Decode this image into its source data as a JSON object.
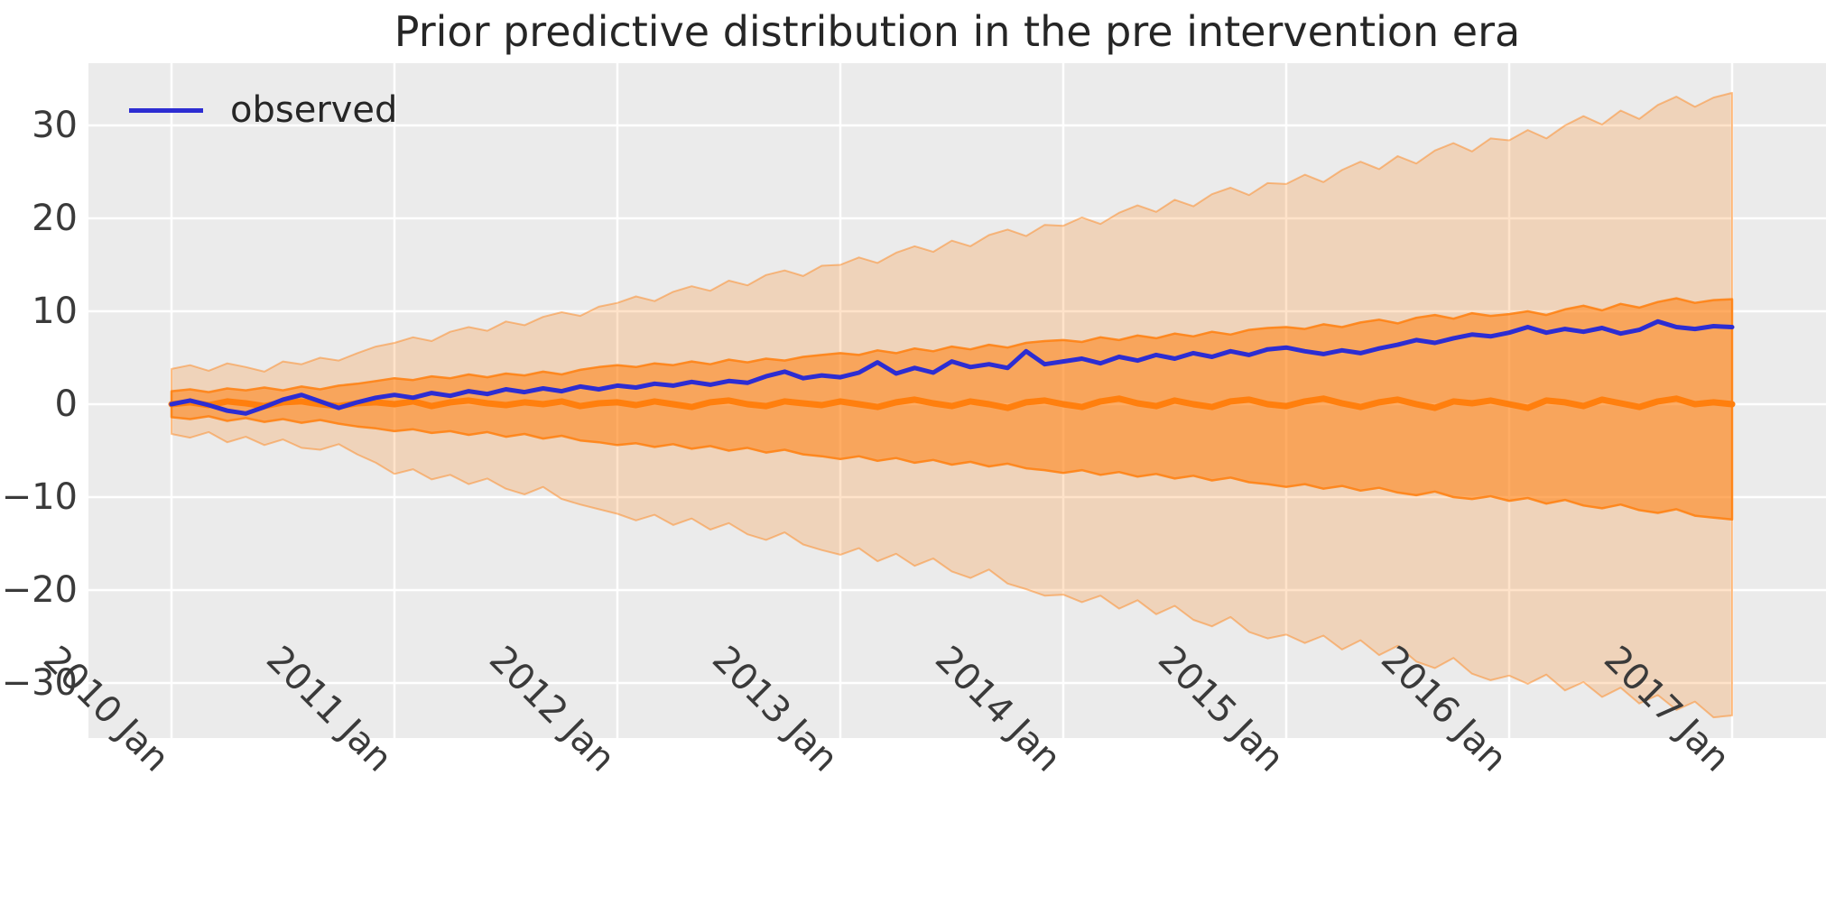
{
  "figure": {
    "title": "Prior predictive distribution in the pre intervention era",
    "background_color": "#ffffff",
    "plot_background_color": "#ebebeb",
    "gridline_color": "#ffffff",
    "text_color": "#262626"
  },
  "legend": {
    "position": "upper-left",
    "entries": [
      {
        "label": "observed",
        "color": "#2d2dd2"
      }
    ]
  },
  "chart_data": {
    "type": "line",
    "title": "Prior predictive distribution in the pre intervention era",
    "xlabel": "",
    "ylabel": "",
    "x_axis": {
      "kind": "monthly-dates",
      "start": "2010 Jan",
      "end": "2017 Jan",
      "n_points": 85,
      "tick_labels": [
        "2010 Jan",
        "2011 Jan",
        "2012 Jan",
        "2013 Jan",
        "2014 Jan",
        "2015 Jan",
        "2016 Jan",
        "2017 Jan"
      ]
    },
    "y_axis": {
      "ticks": [
        30,
        20,
        10,
        0,
        -10,
        -20,
        -30
      ],
      "ylim": [
        -36.3,
        36.7
      ],
      "grid": true
    },
    "series": [
      {
        "name": "observed",
        "color": "#2d2dd2",
        "line_width": 5,
        "values": [
          0.0,
          0.4,
          -0.1,
          -0.7,
          -1.0,
          -0.3,
          0.5,
          1.0,
          0.3,
          -0.4,
          0.2,
          0.7,
          1.0,
          0.7,
          1.2,
          0.9,
          1.4,
          1.1,
          1.6,
          1.3,
          1.7,
          1.4,
          1.9,
          1.6,
          2.0,
          1.8,
          2.2,
          2.0,
          2.4,
          2.1,
          2.5,
          2.3,
          3.0,
          3.5,
          2.8,
          3.1,
          2.9,
          3.4,
          4.5,
          3.3,
          3.9,
          3.4,
          4.6,
          4.0,
          4.3,
          3.9,
          5.7,
          4.3,
          4.6,
          4.9,
          4.4,
          5.1,
          4.7,
          5.3,
          4.9,
          5.5,
          5.1,
          5.7,
          5.3,
          5.9,
          6.1,
          5.7,
          5.4,
          5.8,
          5.5,
          6.0,
          6.4,
          6.9,
          6.6,
          7.1,
          7.5,
          7.3,
          7.7,
          8.3,
          7.7,
          8.1,
          7.8,
          8.2,
          7.6,
          8.0,
          8.9,
          8.3,
          8.1,
          8.4,
          8.3
        ]
      },
      {
        "name": "prior-predictive-median",
        "color": "#ff7f0e",
        "line_width": 7,
        "values": [
          0.0,
          0.2,
          -0.1,
          0.3,
          0.1,
          -0.2,
          0.2,
          0.3,
          0.0,
          -0.2,
          0.1,
          0.2,
          0.0,
          0.3,
          -0.2,
          0.2,
          0.4,
          0.1,
          -0.1,
          0.2,
          0.0,
          0.3,
          -0.2,
          0.1,
          0.2,
          -0.1,
          0.3,
          0.0,
          -0.3,
          0.2,
          0.4,
          0.0,
          -0.2,
          0.3,
          0.1,
          -0.1,
          0.3,
          0.0,
          -0.3,
          0.2,
          0.5,
          0.1,
          -0.2,
          0.3,
          0.0,
          -0.4,
          0.2,
          0.4,
          0.0,
          -0.3,
          0.3,
          0.6,
          0.1,
          -0.2,
          0.4,
          0.0,
          -0.3,
          0.3,
          0.5,
          0.0,
          -0.2,
          0.3,
          0.6,
          0.1,
          -0.3,
          0.2,
          0.5,
          0.0,
          -0.4,
          0.3,
          0.1,
          0.4,
          0.0,
          -0.4,
          0.4,
          0.2,
          -0.2,
          0.5,
          0.1,
          -0.3,
          0.3,
          0.6,
          0.0,
          0.2,
          0.0
        ]
      }
    ],
    "bands": [
      {
        "name": "outer-credible-band",
        "fill": "rgba(255,127,14,0.22)",
        "edge": "rgba(255,127,14,0.45)",
        "edge_width": 2,
        "upper": [
          3.8,
          4.2,
          3.6,
          4.4,
          4.0,
          3.5,
          4.6,
          4.3,
          5.0,
          4.7,
          5.5,
          6.2,
          6.6,
          7.2,
          6.8,
          7.8,
          8.3,
          7.9,
          8.9,
          8.5,
          9.4,
          9.9,
          9.5,
          10.5,
          10.9,
          11.6,
          11.1,
          12.1,
          12.7,
          12.2,
          13.3,
          12.8,
          13.9,
          14.4,
          13.8,
          14.9,
          15.0,
          15.8,
          15.2,
          16.3,
          17.0,
          16.4,
          17.6,
          17.0,
          18.2,
          18.8,
          18.1,
          19.3,
          19.2,
          20.1,
          19.4,
          20.6,
          21.4,
          20.7,
          22.0,
          21.3,
          22.6,
          23.3,
          22.5,
          23.8,
          23.7,
          24.7,
          23.9,
          25.2,
          26.1,
          25.3,
          26.7,
          25.9,
          27.3,
          28.1,
          27.2,
          28.6,
          28.4,
          29.5,
          28.6,
          30.0,
          31.0,
          30.1,
          31.6,
          30.7,
          32.2,
          33.1,
          32.0,
          33.0,
          33.5
        ],
        "lower": [
          -3.2,
          -3.6,
          -3.0,
          -4.1,
          -3.5,
          -4.4,
          -3.8,
          -4.7,
          -4.9,
          -4.3,
          -5.4,
          -6.3,
          -7.5,
          -7.0,
          -8.1,
          -7.6,
          -8.6,
          -8.0,
          -9.1,
          -9.7,
          -8.9,
          -10.2,
          -10.8,
          -11.3,
          -11.8,
          -12.5,
          -11.9,
          -13.0,
          -12.3,
          -13.5,
          -12.8,
          -14.0,
          -14.6,
          -13.8,
          -15.1,
          -15.7,
          -16.2,
          -15.5,
          -16.9,
          -16.1,
          -17.4,
          -16.6,
          -18.0,
          -18.7,
          -17.8,
          -19.3,
          -19.9,
          -20.6,
          -20.5,
          -21.3,
          -20.6,
          -22.0,
          -21.1,
          -22.6,
          -21.7,
          -23.2,
          -23.9,
          -22.9,
          -24.5,
          -25.2,
          -24.8,
          -25.7,
          -24.9,
          -26.4,
          -25.4,
          -27.0,
          -26.0,
          -27.7,
          -28.4,
          -27.3,
          -29.0,
          -29.7,
          -29.2,
          -30.1,
          -29.1,
          -30.8,
          -29.9,
          -31.5,
          -30.5,
          -32.2,
          -31.3,
          -32.9,
          -32.0,
          -33.7,
          -33.5
        ]
      },
      {
        "name": "inner-credible-band",
        "fill": "rgba(255,127,14,0.55)",
        "edge": "rgba(255,127,14,0.85)",
        "edge_width": 2.5,
        "upper": [
          1.4,
          1.6,
          1.3,
          1.7,
          1.5,
          1.8,
          1.5,
          1.9,
          1.6,
          2.0,
          2.2,
          2.5,
          2.8,
          2.6,
          3.0,
          2.8,
          3.2,
          2.9,
          3.3,
          3.1,
          3.5,
          3.2,
          3.7,
          4.0,
          4.2,
          4.0,
          4.4,
          4.2,
          4.6,
          4.3,
          4.8,
          4.5,
          4.9,
          4.7,
          5.1,
          5.3,
          5.5,
          5.3,
          5.8,
          5.5,
          6.0,
          5.7,
          6.2,
          5.9,
          6.4,
          6.1,
          6.6,
          6.8,
          6.9,
          6.7,
          7.2,
          6.9,
          7.4,
          7.1,
          7.6,
          7.3,
          7.8,
          7.5,
          8.0,
          8.2,
          8.3,
          8.1,
          8.6,
          8.3,
          8.8,
          9.1,
          8.7,
          9.3,
          9.6,
          9.2,
          9.8,
          9.5,
          9.7,
          10.0,
          9.6,
          10.2,
          10.6,
          10.1,
          10.8,
          10.4,
          11.0,
          11.4,
          10.9,
          11.2,
          11.3
        ],
        "lower": [
          -1.4,
          -1.6,
          -1.3,
          -1.8,
          -1.5,
          -1.9,
          -1.6,
          -2.0,
          -1.7,
          -2.1,
          -2.4,
          -2.6,
          -2.9,
          -2.7,
          -3.1,
          -2.9,
          -3.3,
          -3.0,
          -3.5,
          -3.2,
          -3.7,
          -3.4,
          -3.9,
          -4.1,
          -4.4,
          -4.2,
          -4.6,
          -4.3,
          -4.8,
          -4.5,
          -5.0,
          -4.7,
          -5.2,
          -4.9,
          -5.4,
          -5.6,
          -5.9,
          -5.6,
          -6.1,
          -5.8,
          -6.3,
          -6.0,
          -6.5,
          -6.2,
          -6.7,
          -6.4,
          -6.9,
          -7.1,
          -7.4,
          -7.1,
          -7.6,
          -7.3,
          -7.8,
          -7.5,
          -8.0,
          -7.7,
          -8.2,
          -7.9,
          -8.4,
          -8.6,
          -8.9,
          -8.6,
          -9.1,
          -8.8,
          -9.3,
          -9.0,
          -9.5,
          -9.8,
          -9.4,
          -10.0,
          -10.2,
          -9.9,
          -10.4,
          -10.1,
          -10.7,
          -10.3,
          -10.9,
          -11.2,
          -10.8,
          -11.4,
          -11.7,
          -11.3,
          -12.0,
          -12.2,
          -12.4
        ]
      }
    ],
    "legend_entries": [
      "observed"
    ],
    "legend_position": "upper left",
    "style": "gray background with white gridlines (seaborn/ggplot style)"
  }
}
